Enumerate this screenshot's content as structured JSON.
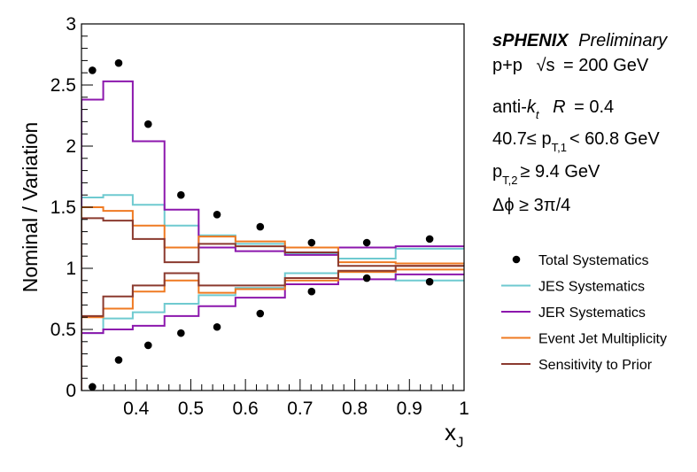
{
  "chart_data": {
    "type": "line",
    "xlabel": "x",
    "xlabel_sub": "J",
    "ylabel": "Nominal / Variation",
    "xlim": [
      0.3,
      1.0
    ],
    "ylim": [
      0,
      3
    ],
    "x_ticks": [
      "0.4",
      "0.5",
      "0.6",
      "0.7",
      "0.8",
      "0.9",
      "1"
    ],
    "y_ticks": [
      "0",
      "0.5",
      "1",
      "1.5",
      "2",
      "2.5",
      "3"
    ],
    "bin_edges": [
      0.3,
      0.3398,
      0.3938,
      0.4519,
      0.5144,
      0.5817,
      0.6723,
      0.7698,
      0.8748,
      1.0
    ],
    "series": [
      {
        "name": "Total Systematics",
        "style": "points",
        "color": "#000000",
        "x": [
          0.32,
          0.368,
          0.422,
          0.482,
          0.548,
          0.627,
          0.721,
          0.822,
          0.937
        ],
        "upper": [
          2.62,
          2.68,
          2.18,
          1.6,
          1.44,
          1.34,
          1.21,
          1.21,
          1.24
        ],
        "lower": [
          0.03,
          0.25,
          0.37,
          0.47,
          0.52,
          0.63,
          0.81,
          0.92,
          0.89
        ]
      },
      {
        "name": "JES Systematics",
        "style": "step",
        "color": "#6fcad0",
        "upper": [
          1.58,
          1.6,
          1.52,
          1.35,
          1.27,
          1.2,
          1.12,
          1.08,
          1.16
        ],
        "lower": [
          0.47,
          0.59,
          0.64,
          0.71,
          0.78,
          0.84,
          0.96,
          0.97,
          0.9
        ]
      },
      {
        "name": "JER Systematics",
        "style": "step",
        "color": "#8c17ad",
        "upper": [
          2.38,
          2.53,
          2.04,
          1.48,
          1.17,
          1.14,
          1.11,
          1.17,
          1.18
        ],
        "lower": [
          0.47,
          0.5,
          0.53,
          0.61,
          0.69,
          0.76,
          0.87,
          0.91,
          0.95
        ]
      },
      {
        "name": "Event Jet Multiplicity",
        "style": "step",
        "color": "#ef7a22",
        "upper": [
          1.5,
          1.47,
          1.35,
          1.17,
          1.26,
          1.22,
          1.17,
          1.05,
          1.04
        ],
        "lower": [
          0.6,
          0.67,
          0.81,
          0.9,
          0.8,
          0.83,
          0.9,
          0.97,
          0.99
        ]
      },
      {
        "name": "Sensitivity to Prior",
        "style": "step",
        "color": "#8b3a2f",
        "upper": [
          1.41,
          1.39,
          1.24,
          1.05,
          1.2,
          1.18,
          1.13,
          1.02,
          1.02
        ],
        "lower": [
          0.61,
          0.77,
          0.86,
          0.96,
          0.86,
          0.86,
          0.92,
          0.98,
          1.02
        ]
      }
    ],
    "legend_placement": "right"
  },
  "info": {
    "experiment": "sPHENIX",
    "status": "Preliminary",
    "system": "p+p",
    "energy_sqrt": "√s",
    "energy_value": "= 200 GeV",
    "jet_algo": "anti-",
    "jet_k": "k",
    "jet_t": "t",
    "jet_r": "R",
    "jet_r_value": "= 0.4",
    "pt1_prefix": "40.7≤ p",
    "pt1_sub": "T,1",
    "pt1_suffix": "< 60.8 GeV",
    "pt2_prefix": "p",
    "pt2_sub": "T,2",
    "pt2_suffix": "≥ 9.4 GeV",
    "dphi": "Δϕ ≥ 3π/4"
  }
}
